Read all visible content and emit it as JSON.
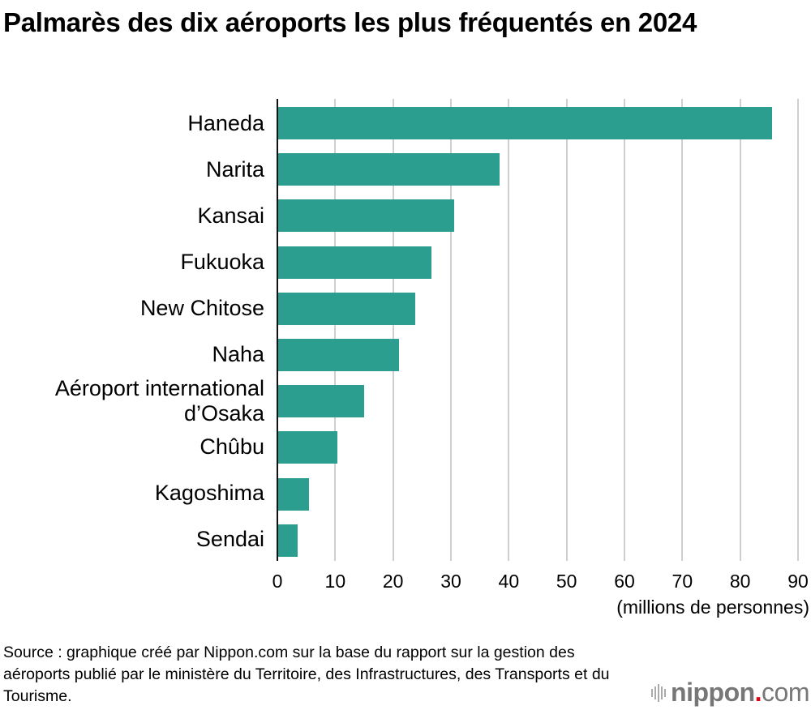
{
  "title": "Palmarès des dix aéroports les plus fréquentés en 2024",
  "chart_data": {
    "type": "bar",
    "orientation": "horizontal",
    "title": "Palmarès des dix aéroports les plus fréquentés en 2024",
    "categories": [
      "Haneda",
      "Narita",
      "Kansai",
      "Fukuoka",
      "New Chitose",
      "Naha",
      "Aéroport international d’Osaka",
      "Chûbu",
      "Kagoshima",
      "Sendai"
    ],
    "values": [
      85.7,
      38.5,
      30.7,
      26.8,
      24.0,
      21.2,
      15.1,
      10.5,
      5.6,
      3.7
    ],
    "xlabel": "(millions de personnes)",
    "ylabel": "",
    "xlim": [
      0,
      90
    ],
    "xticks": [
      0,
      10,
      20,
      30,
      40,
      50,
      60,
      70,
      80,
      90
    ],
    "grid": true,
    "bar_color": "#2b9e8f"
  },
  "labels": {
    "cat0": "Haneda",
    "cat1": "Narita",
    "cat2": "Kansai",
    "cat3": "Fukuoka",
    "cat4": "New Chitose",
    "cat5": "Naha",
    "cat6a": "Aéroport international",
    "cat6b": "d’Osaka",
    "cat7": "Chûbu",
    "cat8": "Kagoshima",
    "cat9": "Sendai"
  },
  "ticks": [
    "0",
    "10",
    "20",
    "30",
    "40",
    "50",
    "60",
    "70",
    "80",
    "90"
  ],
  "unit": "(millions de personnes)",
  "source": "Source : graphique créé par Nippon.com sur la base du rapport sur la gestion des aéroports publié par le ministère du Territoire, des Infrastructures, des Transports et du Tourisme.",
  "logo": {
    "name": "nippon",
    "dot": ".",
    "suffix": "com"
  }
}
